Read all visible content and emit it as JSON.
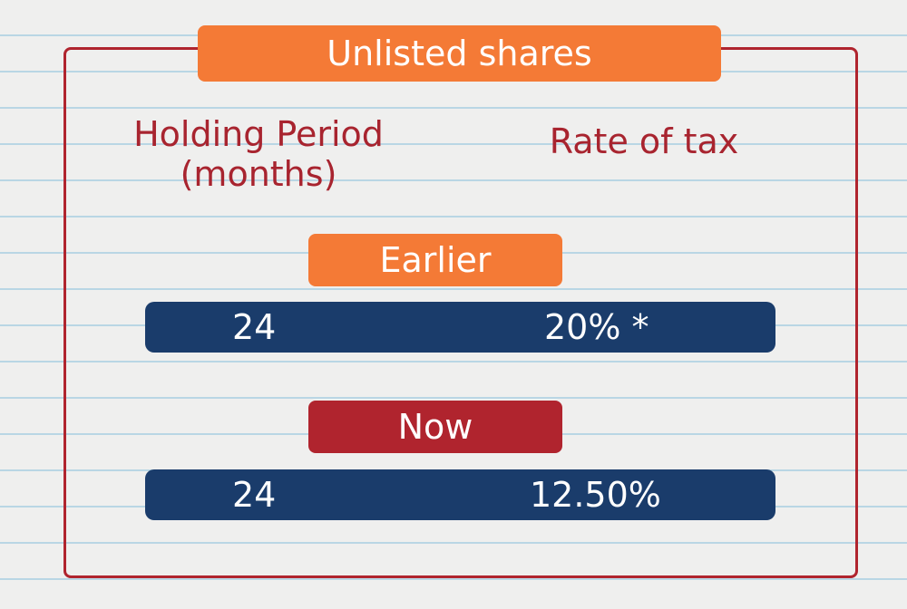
{
  "title": "Unlisted shares",
  "headers": [
    "Holding Period (months)",
    "Rate of tax"
  ],
  "sections": [
    {
      "label": "Earlier",
      "rows": [
        [
          "24",
          "20% *"
        ]
      ]
    },
    {
      "label": "Now",
      "rows": [
        [
          "24",
          "12.50%"
        ]
      ]
    }
  ]
}
